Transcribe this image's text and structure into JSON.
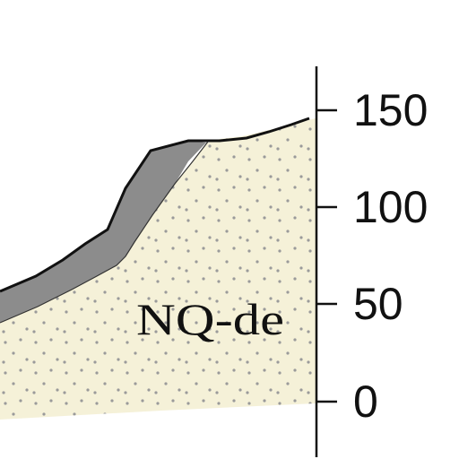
{
  "section": {
    "unit_label": "NQ-de",
    "colors": {
      "background": "#ffffff",
      "unit_fill": "#f5f1d8",
      "dot": "#9a9a9a",
      "cover_fill": "#8c8c8c",
      "outline": "#111111"
    },
    "axis": {
      "ticks": [
        {
          "value": 150,
          "label": "150"
        },
        {
          "value": 100,
          "label": "100"
        },
        {
          "value": 50,
          "label": "50"
        },
        {
          "value": 0,
          "label": "0"
        }
      ]
    }
  }
}
